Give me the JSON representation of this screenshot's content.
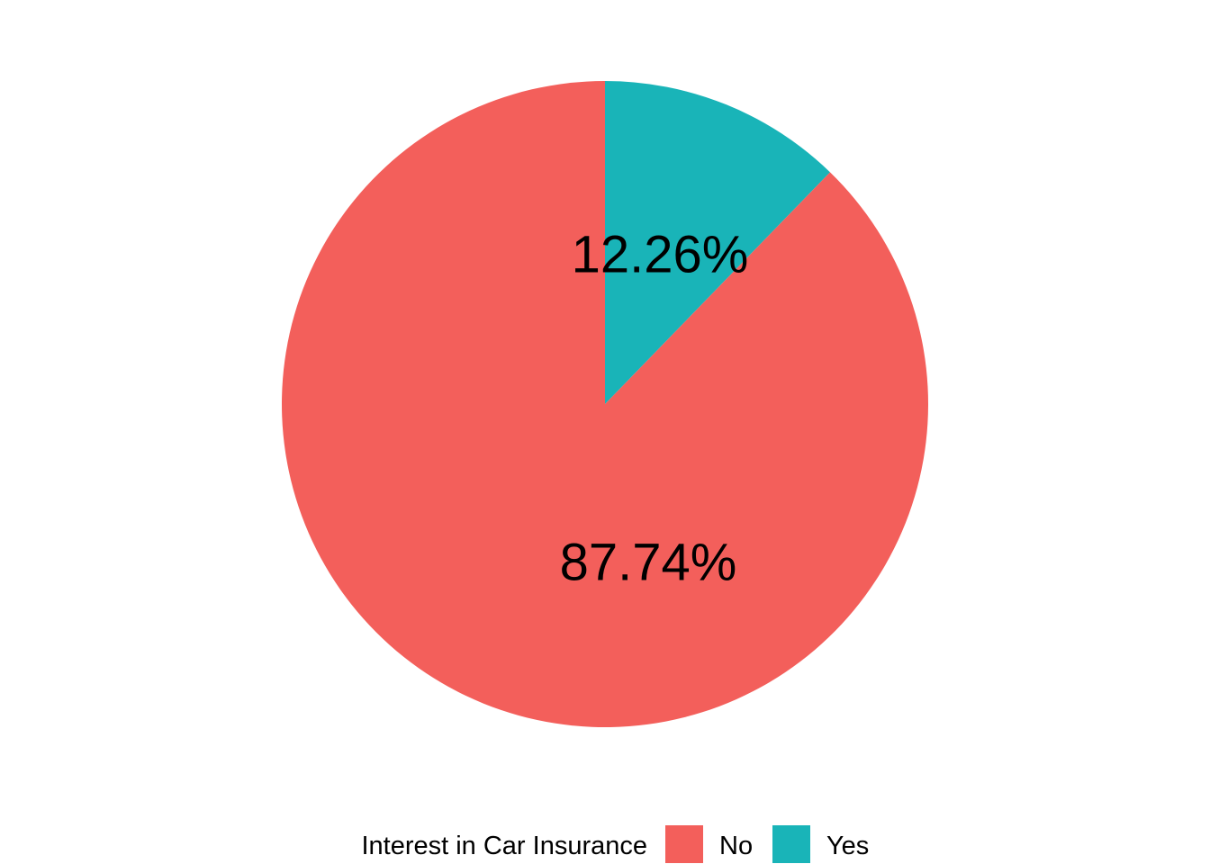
{
  "chart_data": {
    "type": "pie",
    "categories": [
      "No",
      "Yes"
    ],
    "values": [
      87.74,
      12.26
    ],
    "data_labels": [
      "87.74%",
      "12.26%"
    ],
    "colors": [
      "#F35F5B",
      "#19B4B8"
    ],
    "legend": {
      "title": "Interest in Car Insurance",
      "placement": "bottom",
      "entries": [
        "No",
        "Yes"
      ]
    },
    "start_angle": "12 o'clock",
    "direction": "counterclockwise"
  }
}
